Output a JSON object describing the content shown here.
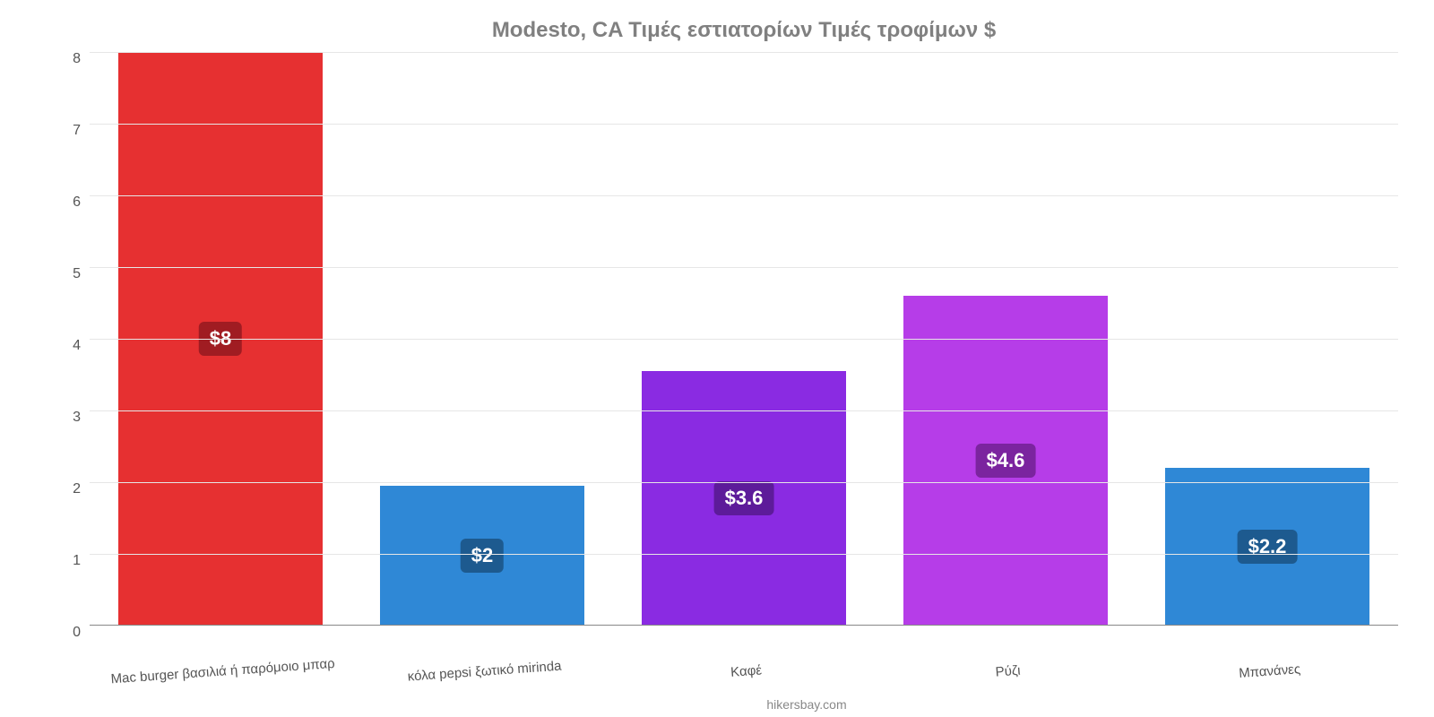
{
  "chart": {
    "type": "bar",
    "title": "Modesto, CA Τιμές εστιατορίων Τιμές τροφίμων $",
    "title_color": "#808080",
    "title_fontsize": 24,
    "attribution": "hikersbay.com",
    "background_color": "#ffffff",
    "grid_color": "#e6e6e6",
    "axis_color": "#888888",
    "tick_color": "#555555",
    "tick_fontsize": 16,
    "xlabel_fontsize": 15,
    "ylim_min": 0,
    "ylim_max": 8,
    "ytick_step": 1,
    "yticks": [
      0,
      1,
      2,
      3,
      4,
      5,
      6,
      7,
      8
    ],
    "bar_width_ratio": 0.78,
    "badge_fontsize": 22,
    "bars": [
      {
        "category": "Mac burger βασιλιά ή παρόμοιο μπαρ",
        "value": 8.0,
        "display": "$8",
        "color": "#e63031",
        "badge_bg": "#a01c22"
      },
      {
        "category": "κόλα pepsi ξωτικό mirinda",
        "value": 1.95,
        "display": "$2",
        "color": "#2f88d6",
        "badge_bg": "#1d5a8f"
      },
      {
        "category": "Καφέ",
        "value": 3.55,
        "display": "$3.6",
        "color": "#8a2be2",
        "badge_bg": "#5d1b9a"
      },
      {
        "category": "Ρύζι",
        "value": 4.6,
        "display": "$4.6",
        "color": "#b63de8",
        "badge_bg": "#7b249f"
      },
      {
        "category": "Μπανάνες",
        "value": 2.2,
        "display": "$2.2",
        "color": "#2f88d6",
        "badge_bg": "#1d5a8f"
      }
    ]
  }
}
